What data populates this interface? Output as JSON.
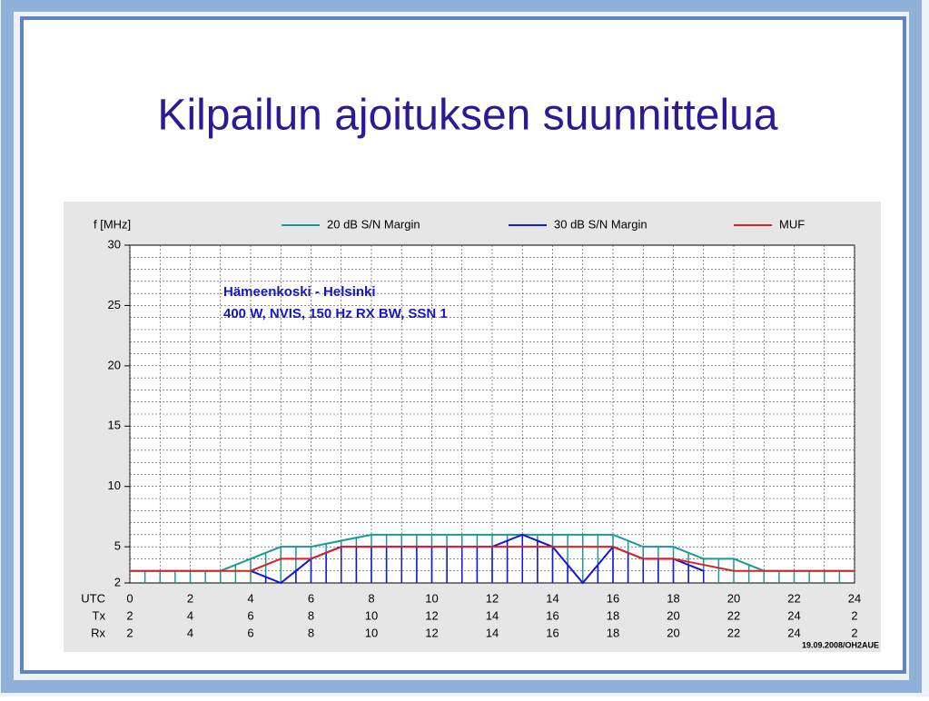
{
  "slide_title": "Kilpailun ajoituksen suunnittelua",
  "chart_data": {
    "type": "line",
    "ylabel": "f [MHz]",
    "annotations": [
      "Hämeenkoski - Helsinki",
      "400 W, NVIS, 150 Hz RX BW, SSN 1"
    ],
    "footer": "19.09.2008/OH2AUE",
    "row_labels": [
      "UTC",
      "Tx",
      "Rx"
    ],
    "x": [
      0,
      1,
      2,
      3,
      4,
      5,
      6,
      7,
      8,
      9,
      10,
      11,
      12,
      13,
      14,
      15,
      16,
      17,
      18,
      19,
      20,
      21,
      22,
      23,
      24
    ],
    "xlim": [
      0,
      24
    ],
    "xticks": [
      0,
      2,
      4,
      6,
      8,
      10,
      12,
      14,
      16,
      18,
      20,
      22,
      24
    ],
    "tx_labels": [
      2,
      4,
      6,
      8,
      10,
      12,
      14,
      16,
      18,
      20,
      22,
      24,
      2
    ],
    "rx_labels": [
      2,
      4,
      6,
      8,
      10,
      12,
      14,
      16,
      18,
      20,
      22,
      24,
      2
    ],
    "ylim": [
      2,
      30
    ],
    "yticks": [
      2,
      5,
      10,
      15,
      20,
      25,
      30
    ],
    "grid": true,
    "legend": "top",
    "series": [
      {
        "name": "20 dB S/N Margin",
        "color": "#1a9a96",
        "values": [
          3,
          3,
          3,
          3,
          4,
          5,
          5,
          5.5,
          6,
          6,
          6,
          6,
          6,
          6,
          6,
          6,
          6,
          5,
          5,
          4,
          4,
          3,
          3,
          3,
          3
        ]
      },
      {
        "name": "30 dB S/N Margin",
        "color": "#1414e0",
        "values": [
          null,
          null,
          null,
          null,
          3,
          2,
          4,
          5,
          5,
          5,
          5,
          5,
          5,
          6,
          5,
          2,
          5,
          4,
          4,
          3,
          null,
          null,
          null,
          null,
          null
        ]
      },
      {
        "name": "MUF",
        "color": "#e02020",
        "values": [
          3,
          3,
          3,
          3,
          3,
          4,
          4,
          5,
          5,
          5,
          5,
          5,
          5,
          5,
          5,
          5,
          5,
          4,
          4,
          3.5,
          3,
          3,
          3,
          3,
          3
        ]
      }
    ]
  }
}
